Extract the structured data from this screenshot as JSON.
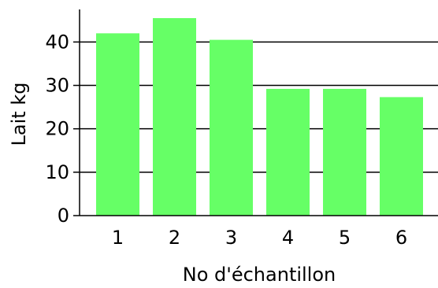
{
  "chart_data": {
    "type": "bar",
    "categories": [
      "1",
      "2",
      "3",
      "4",
      "5",
      "6"
    ],
    "values": [
      42,
      45.5,
      40.5,
      29.2,
      29.2,
      27.3
    ],
    "title": "",
    "xlabel": "No d'échantillon",
    "ylabel": "Lait kg",
    "ylim": [
      0,
      47.5
    ],
    "yticks": [
      0,
      10,
      20,
      30,
      40
    ],
    "grid": "horizontal lines at y ticks",
    "legend": "none",
    "colors": {
      "bar": "#66ff66",
      "grid": "#000000",
      "axis": "#000000",
      "background": "#ffffff"
    }
  }
}
